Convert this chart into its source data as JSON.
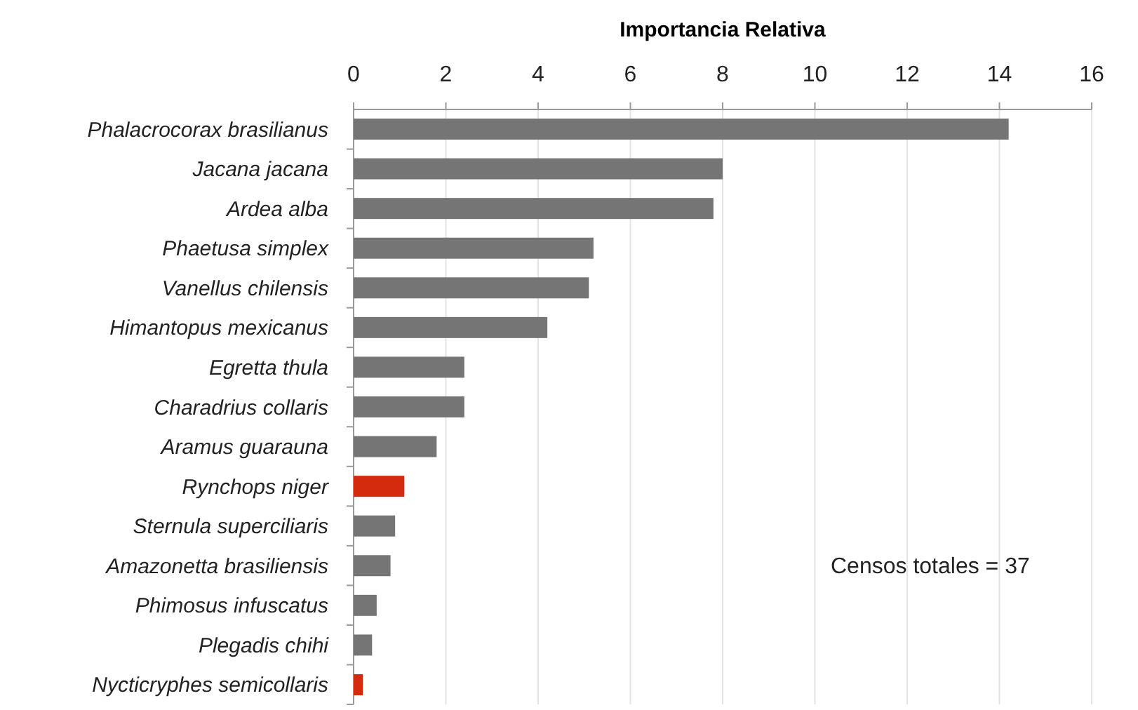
{
  "chart_data": {
    "type": "bar",
    "orientation": "horizontal",
    "title": "Importancia Relativa",
    "categories": [
      "Phalacrocorax brasilianus",
      "Jacana jacana",
      "Ardea alba",
      "Phaetusa simplex",
      "Vanellus chilensis",
      "Himantopus mexicanus",
      "Egretta thula",
      "Charadrius collaris",
      "Aramus guarauna",
      "Rynchops niger",
      "Sternula superciliaris",
      "Amazonetta brasiliensis",
      "Phimosus infuscatus",
      "Plegadis chihi",
      "Nycticryphes semicollaris"
    ],
    "values": [
      14.2,
      8.0,
      7.8,
      5.2,
      5.1,
      4.2,
      2.4,
      2.4,
      1.8,
      1.1,
      0.9,
      0.8,
      0.5,
      0.4,
      0.2
    ],
    "colors": [
      "#757575",
      "#757575",
      "#757575",
      "#757575",
      "#757575",
      "#757575",
      "#757575",
      "#757575",
      "#757575",
      "#d42a0d",
      "#757575",
      "#757575",
      "#757575",
      "#757575",
      "#d42a0d"
    ],
    "xlim": [
      0,
      16
    ],
    "xticks": [
      0,
      2,
      4,
      6,
      8,
      10,
      12,
      14,
      16
    ],
    "grid": "x",
    "annotations": [
      "Censos totales = 37"
    ]
  }
}
